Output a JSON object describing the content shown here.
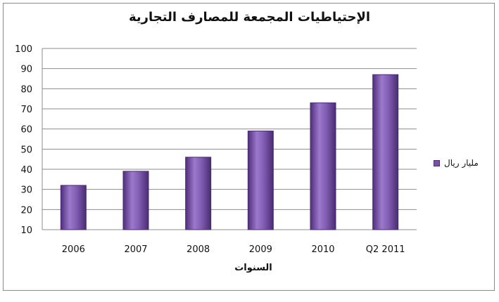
{
  "chart_data": {
    "type": "bar",
    "title": "الإحتياطيات المجمعة للمصارف التجارية",
    "xlabel": "السنوات",
    "ylabel": "",
    "categories": [
      "2006",
      "2007",
      "2008",
      "2009",
      "2010",
      "Q2 2011"
    ],
    "series": [
      {
        "name": "مليار ريال",
        "values": [
          32,
          39,
          46,
          59,
          73,
          87
        ]
      }
    ],
    "ylim": [
      10,
      100
    ],
    "yticks": [
      "10",
      "20",
      "30",
      "40",
      "50",
      "60",
      "70",
      "80",
      "90",
      "100"
    ],
    "grid": true,
    "legend_position": "right",
    "colors": {
      "bar": "#7a52a8",
      "bar_dark": "#4a2c72",
      "bar_light": "#b49bd6",
      "grid": "#8c8c8c"
    }
  }
}
